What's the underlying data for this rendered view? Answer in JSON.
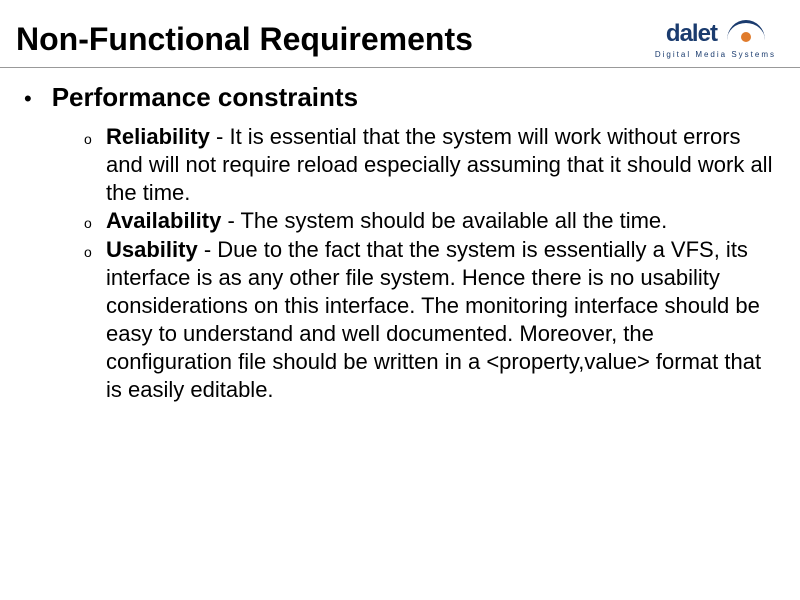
{
  "header": {
    "title": "Non-Functional Requirements",
    "logo_text": "dalet",
    "logo_tagline": "Digital Media Systems"
  },
  "section": {
    "heading": "Performance constraints",
    "items": [
      {
        "label": "Reliability",
        "text": " - It is essential that the system will work without errors and will not require reload especially assuming that it should work all the time."
      },
      {
        "label": "Availability",
        "text": " - The system should be available all the time."
      },
      {
        "label": "Usability",
        "text": " -  Due to the fact that the system is essentially a VFS, its interface is as any other file system. Hence there is no usability considerations on this interface. The monitoring interface should be easy to understand and well documented. Moreover, the configuration file should be written in a <property,value> format that is easily editable."
      }
    ]
  },
  "colors": {
    "text": "#000000",
    "logo_primary": "#1a3b6e",
    "logo_accent": "#e07b2c",
    "divider": "#999999",
    "background": "#ffffff"
  }
}
